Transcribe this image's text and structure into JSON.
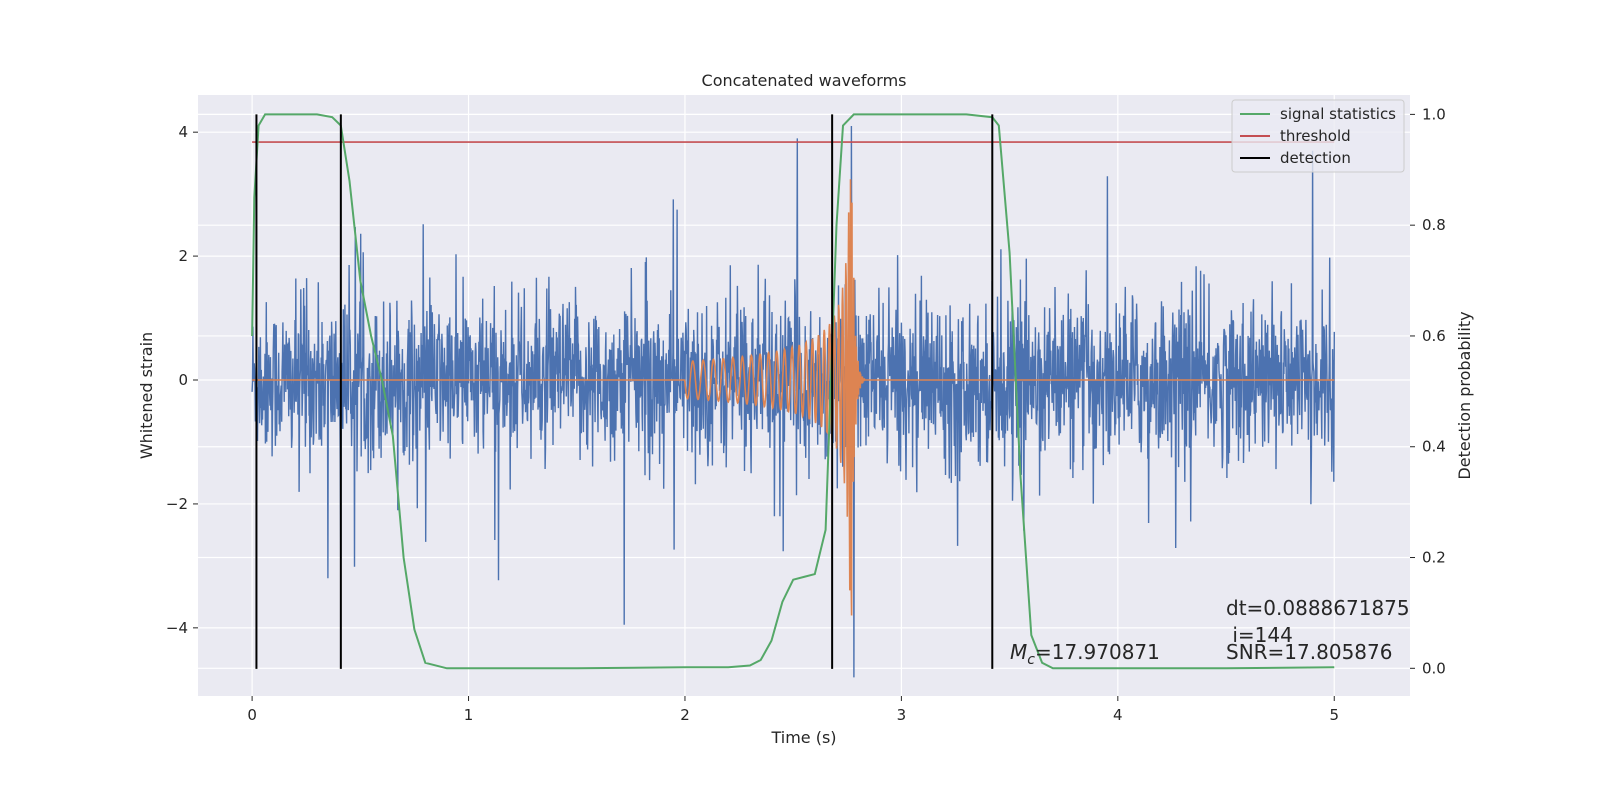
{
  "chart_data": {
    "type": "line",
    "title": "Concatenated waveforms",
    "xlabel": "Time (s)",
    "ylabel": "Whitened strain",
    "y2label": "Detection probability",
    "xlim": [
      -0.25,
      5.35
    ],
    "ylim": [
      -5.1,
      4.6
    ],
    "y2lim": [
      -0.05,
      1.035
    ],
    "x_ticks": [
      0,
      1,
      2,
      3,
      4,
      5
    ],
    "x_tick_labels": [
      "0",
      "1",
      "2",
      "3",
      "4",
      "5"
    ],
    "y_ticks": [
      -4,
      -2,
      0,
      2,
      4
    ],
    "y_tick_labels": [
      "−4",
      "−2",
      "0",
      "2",
      "4"
    ],
    "y2_ticks": [
      0.0,
      0.2,
      0.4,
      0.6,
      0.8,
      1.0
    ],
    "y2_tick_labels": [
      "0.0",
      "0.2",
      "0.4",
      "0.6",
      "0.8",
      "1.0"
    ],
    "grid": true,
    "legend_position": "top-right",
    "legend": [
      {
        "label": "signal statistics",
        "color": "#55a868"
      },
      {
        "label": "threshold",
        "color": "#c44e52"
      },
      {
        "label": "detection",
        "color": "#000000"
      }
    ],
    "colors": {
      "strain": "#4c72b0",
      "template": "#dd8452",
      "signal_statistics": "#55a868",
      "threshold": "#c44e52",
      "detection": "#000000",
      "plot_background": "#eaeaf2",
      "grid": "#ffffff"
    },
    "strain_series": {
      "x_range": [
        0,
        5
      ],
      "amplitude_envelope": [
        -3.3,
        3.6
      ],
      "typical_range": [
        -1.2,
        1.3
      ],
      "min_value": -4.8,
      "max_value": 4.1
    },
    "template_series": {
      "x_range": [
        0,
        5
      ],
      "chirp_start": 2.0,
      "merger_time": 2.77,
      "amplitude_start": 0.3,
      "peak_max": 3.5,
      "peak_min": -3.8
    },
    "signal_statistics": {
      "x": [
        0.0,
        0.01,
        0.03,
        0.06,
        0.1,
        0.2,
        0.3,
        0.37,
        0.41,
        0.45,
        0.5,
        0.55,
        0.6,
        0.65,
        0.7,
        0.75,
        0.8,
        0.9,
        1.5,
        2.0,
        2.2,
        2.3,
        2.35,
        2.4,
        2.45,
        2.5,
        2.55,
        2.6,
        2.65,
        2.7,
        2.73,
        2.78,
        2.85,
        3.0,
        3.3,
        3.42,
        3.45,
        3.5,
        3.55,
        3.6,
        3.65,
        3.7,
        3.8,
        4.0,
        4.5,
        5.0
      ],
      "y": [
        0.6,
        0.85,
        0.98,
        1.0,
        1.0,
        1.0,
        1.0,
        0.995,
        0.98,
        0.88,
        0.7,
        0.6,
        0.52,
        0.42,
        0.2,
        0.07,
        0.01,
        0.0,
        0.0,
        0.002,
        0.002,
        0.005,
        0.015,
        0.05,
        0.12,
        0.16,
        0.165,
        0.17,
        0.25,
        0.8,
        0.98,
        1.0,
        1.0,
        1.0,
        1.0,
        0.995,
        0.98,
        0.75,
        0.35,
        0.06,
        0.01,
        0.0,
        0.0,
        0.0,
        0.0,
        0.002
      ]
    },
    "threshold": 0.95,
    "threshold_x_range": [
      0,
      5
    ],
    "detections": [
      0.02,
      0.41,
      2.68,
      3.42
    ],
    "annotations": {
      "dt": "dt=0.0888671875",
      "i": " i=144",
      "mc_symbol": "M",
      "mc_subscript": "c",
      "mc_value": "=17.970871",
      "snr": "SNR=17.805876"
    }
  }
}
